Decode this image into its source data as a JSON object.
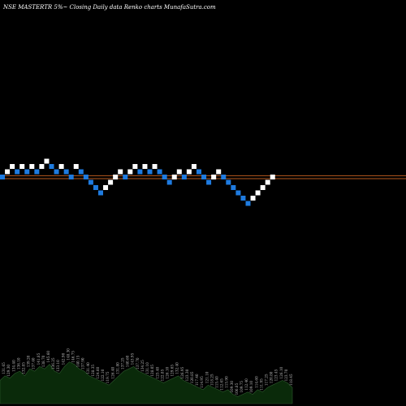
{
  "chart_data": {
    "type": "renko",
    "title": "NSE MASTERTR 5%~ Closing Daily data Renko charts MunafaSutra.com",
    "colors": {
      "background": "#000000",
      "up_brick": "#ffffff",
      "down_brick": "#1e7be0",
      "ref_line": "#b85a1e",
      "volume_fill": "#0a2a0a",
      "volume_outline": "#2e5a2e"
    },
    "reference_levels": [
      0.25,
      -0.3
    ],
    "bricks": [
      {
        "level": 0,
        "dir": "down"
      },
      {
        "level": 1,
        "dir": "up"
      },
      {
        "level": 2,
        "dir": "up"
      },
      {
        "level": 1,
        "dir": "down"
      },
      {
        "level": 2,
        "dir": "up"
      },
      {
        "level": 1,
        "dir": "down"
      },
      {
        "level": 2,
        "dir": "up"
      },
      {
        "level": 1,
        "dir": "down"
      },
      {
        "level": 2,
        "dir": "up"
      },
      {
        "level": 3,
        "dir": "up"
      },
      {
        "level": 2,
        "dir": "down"
      },
      {
        "level": 1,
        "dir": "down"
      },
      {
        "level": 2,
        "dir": "up"
      },
      {
        "level": 1,
        "dir": "down"
      },
      {
        "level": 0,
        "dir": "down"
      },
      {
        "level": 2,
        "dir": "up"
      },
      {
        "level": 1,
        "dir": "down"
      },
      {
        "level": 0,
        "dir": "down"
      },
      {
        "level": -1,
        "dir": "down"
      },
      {
        "level": -2,
        "dir": "down"
      },
      {
        "level": -3,
        "dir": "down"
      },
      {
        "level": -2,
        "dir": "up"
      },
      {
        "level": -1,
        "dir": "up"
      },
      {
        "level": 0,
        "dir": "up"
      },
      {
        "level": 1,
        "dir": "up"
      },
      {
        "level": 0,
        "dir": "down"
      },
      {
        "level": 1,
        "dir": "up"
      },
      {
        "level": 2,
        "dir": "up"
      },
      {
        "level": 1,
        "dir": "down"
      },
      {
        "level": 2,
        "dir": "up"
      },
      {
        "level": 1,
        "dir": "down"
      },
      {
        "level": 2,
        "dir": "up"
      },
      {
        "level": 1,
        "dir": "down"
      },
      {
        "level": 0,
        "dir": "down"
      },
      {
        "level": -1,
        "dir": "down"
      },
      {
        "level": 0,
        "dir": "up"
      },
      {
        "level": 1,
        "dir": "up"
      },
      {
        "level": 0,
        "dir": "down"
      },
      {
        "level": 1,
        "dir": "up"
      },
      {
        "level": 2,
        "dir": "up"
      },
      {
        "level": 1,
        "dir": "down"
      },
      {
        "level": 0,
        "dir": "down"
      },
      {
        "level": -1,
        "dir": "down"
      },
      {
        "level": 0,
        "dir": "up"
      },
      {
        "level": 1,
        "dir": "up"
      },
      {
        "level": 0,
        "dir": "down"
      },
      {
        "level": -1,
        "dir": "down"
      },
      {
        "level": -2,
        "dir": "down"
      },
      {
        "level": -3,
        "dir": "down"
      },
      {
        "level": -4,
        "dir": "down"
      },
      {
        "level": -5,
        "dir": "down"
      },
      {
        "level": -4,
        "dir": "up"
      },
      {
        "level": -3,
        "dir": "up"
      },
      {
        "level": -2,
        "dir": "up"
      },
      {
        "level": -1,
        "dir": "up"
      },
      {
        "level": 0,
        "dir": "up"
      }
    ],
    "volume": {
      "values": [
        0.5,
        0.6,
        0.55,
        0.65,
        0.7,
        0.6,
        0.75,
        0.7,
        0.8,
        0.75,
        0.85,
        0.7,
        0.65,
        0.8,
        0.9,
        0.85,
        0.75,
        0.7,
        0.6,
        0.55,
        0.5,
        0.45,
        0.4,
        0.5,
        0.6,
        0.7,
        0.75,
        0.8,
        0.7,
        0.65,
        0.6,
        0.55,
        0.5,
        0.45,
        0.5,
        0.55,
        0.6,
        0.5,
        0.45,
        0.4,
        0.35,
        0.3,
        0.4,
        0.35,
        0.3,
        0.25,
        0.3,
        0.2,
        0.15,
        0.2,
        0.25,
        0.2,
        0.3,
        0.25,
        0.35,
        0.4,
        0.45,
        0.5,
        0.45,
        0.35
      ],
      "labels": [
        "127.95",
        "131.65",
        "129.30",
        "134.40",
        "136.10",
        "132.85",
        "139.20",
        "137.40",
        "141.85",
        "138.70",
        "145.60",
        "136.25",
        "133.10",
        "142.90",
        "148.30",
        "146.75",
        "140.15",
        "137.90",
        "131.40",
        "128.35",
        "124.60",
        "122.10",
        "119.75",
        "126.40",
        "131.80",
        "137.25",
        "140.60",
        "143.95",
        "137.70",
        "134.25",
        "131.10",
        "128.05",
        "125.40",
        "122.85",
        "126.10",
        "129.65",
        "132.40",
        "126.95",
        "123.30",
        "120.85",
        "117.40",
        "114.95",
        "121.10",
        "118.25",
        "115.40",
        "112.65",
        "115.90",
        "109.30",
        "106.85",
        "109.75",
        "112.40",
        "109.10",
        "114.60",
        "111.95",
        "117.25",
        "120.80",
        "123.45",
        "126.10",
        "123.70",
        "118.45"
      ]
    }
  }
}
